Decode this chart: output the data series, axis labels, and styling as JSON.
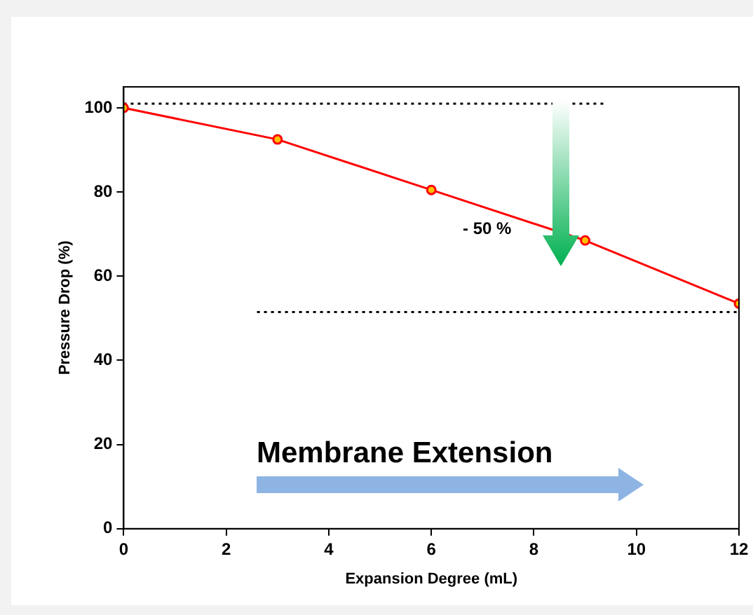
{
  "chart_data": {
    "type": "line",
    "xlabel": "Expansion Degree (mL)",
    "ylabel": "Pressure Drop (%)",
    "xlim": [
      0,
      12
    ],
    "xticks": [
      0,
      2,
      4,
      6,
      8,
      10,
      12
    ],
    "ylim": [
      0,
      105
    ],
    "yticks": [
      0,
      20,
      40,
      60,
      80,
      100
    ],
    "grid": false,
    "legend": false,
    "marker": "circle",
    "line_style": "solid",
    "series": [
      {
        "color": "#ff0000",
        "x": [
          0,
          3,
          6,
          9,
          12
        ],
        "values": [
          100,
          92.5,
          80.5,
          68.5,
          53.5
        ]
      },
      {
        "type": "line",
        "color": "#000000",
        "marker": "none",
        "line_style": "dotted",
        "x": [
          0,
          9.4
        ],
        "values": [
          101,
          101
        ]
      },
      {
        "type": "line",
        "color": "#000000",
        "marker": "none",
        "line_style": "dotted",
        "x": [
          2.6,
          12
        ],
        "values": [
          51.5,
          51.5
        ]
      }
    ],
    "annotations": [
      "- 50 %",
      "Membrane Extension"
    ]
  }
}
